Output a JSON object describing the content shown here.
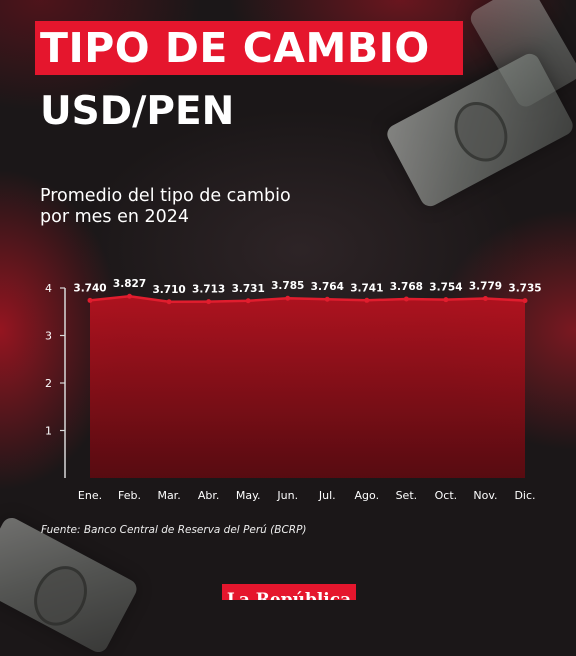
{
  "header": {
    "title": "TIPO DE CAMBIO",
    "subtitle": "USD/PEN",
    "description_line1": "Promedio del tipo de cambio",
    "description_line2": "por mes en 2024"
  },
  "footer": {
    "source": "Fuente: Banco Central de Reserva del Perú (BCRP)",
    "logo_text": "La República"
  },
  "colors": {
    "accent": "#e5162d",
    "area_fill": "#7a0c14",
    "line": "#e11d2e",
    "background": "#1b1718"
  },
  "chart_data": {
    "type": "area",
    "categories": [
      "Ene.",
      "Feb.",
      "Mar.",
      "Abr.",
      "May.",
      "Jun.",
      "Jul.",
      "Ago.",
      "Set.",
      "Oct.",
      "Nov.",
      "Dic."
    ],
    "values": [
      3.74,
      3.827,
      3.71,
      3.713,
      3.731,
      3.785,
      3.764,
      3.741,
      3.768,
      3.754,
      3.779,
      3.735
    ],
    "value_labels": [
      "3.740",
      "3.827",
      "3.710",
      "3.713",
      "3.731",
      "3.785",
      "3.764",
      "3.741",
      "3.768",
      "3.754",
      "3.779",
      "3.735"
    ],
    "y_ticks": [
      "1",
      "2",
      "3",
      "4"
    ],
    "ylim": [
      0,
      4
    ],
    "grid": false,
    "legend": "none",
    "title": "",
    "xlabel": "",
    "ylabel": ""
  }
}
